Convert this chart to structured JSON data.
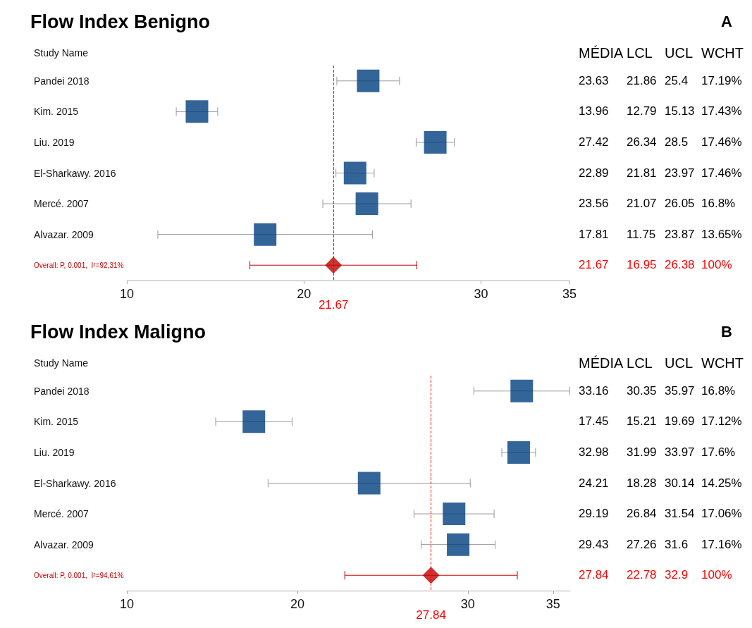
{
  "chart_data": [
    {
      "type": "scatter",
      "orientation": "horizontal",
      "title": "Flow Index Benigno",
      "ylabel": "Study Name",
      "categories": [
        "Pandei 2018",
        "Kim. 2015",
        "Liu. 2019",
        "El-Sharkawy. 2016",
        "Mercé. 2007",
        "Alvazar. 2009",
        "Overall: P, 0.001,  I²=92,31%"
      ],
      "series": [
        {
          "marker": "square",
          "color": "#003f7f",
          "values": [
            23.63,
            13.96,
            27.42,
            22.89,
            23.56,
            17.81,
            null
          ],
          "errors": [
            [
              21.86,
              25.4
            ],
            [
              12.79,
              15.13
            ],
            [
              26.34,
              28.5
            ],
            [
              21.81,
              23.97
            ],
            [
              21.07,
              26.05
            ],
            [
              11.75,
              23.87
            ],
            null
          ]
        },
        {
          "marker": "diamond",
          "color": "#c00000",
          "values": [
            null,
            null,
            null,
            null,
            null,
            null,
            21.67
          ],
          "errors": [
            null,
            null,
            null,
            null,
            null,
            null,
            [
              16.95,
              26.38
            ]
          ]
        }
      ],
      "xlim": [
        10,
        35
      ],
      "xticks": [
        10,
        20,
        30,
        35
      ],
      "ref_lines": [
        {
          "axis": "x",
          "value": 21.67,
          "label": "21.67",
          "color": "#ff0000",
          "line_style": "dashed"
        }
      ]
    },
    {
      "type": "other",
      "annotations": [
        "A"
      ],
      "categories": [
        "MÉDIA",
        "LCL",
        "UCL",
        "WCHT"
      ],
      "cell_labels": [
        [
          "23.63",
          "21.86",
          "25.4",
          "17.19%"
        ],
        [
          "13.96",
          "12.79",
          "15.13",
          "17.43%"
        ],
        [
          "27.42",
          "26.34",
          "28.5",
          "17.46%"
        ],
        [
          "22.89",
          "21.81",
          "23.97",
          "17.46%"
        ],
        [
          "23.56",
          "21.07",
          "26.05",
          "16.8%"
        ],
        [
          "17.81",
          "11.75",
          "23.87",
          "13.65%"
        ],
        [
          "21.67",
          "16.95",
          "26.38",
          "100%"
        ]
      ],
      "colors": [
        "#000000",
        "#000000",
        "#000000",
        "#000000",
        "#000000",
        "#000000",
        "#ff0000"
      ]
    },
    {
      "type": "scatter",
      "orientation": "horizontal",
      "title": "Flow Index Maligno",
      "ylabel": "Study Name",
      "categories": [
        "Pandei 2018",
        "Kim. 2015",
        "Liu. 2019",
        "El-Sharkawy. 2016",
        "Mercé. 2007",
        "Alvazar. 2009",
        "Overall: P, 0.001,  I²=94,61%"
      ],
      "series": [
        {
          "marker": "square",
          "color": "#003f7f",
          "values": [
            33.16,
            17.45,
            32.98,
            24.21,
            29.19,
            29.43,
            null
          ],
          "errors": [
            [
              30.35,
              35.97
            ],
            [
              15.21,
              19.69
            ],
            [
              31.99,
              33.97
            ],
            [
              18.28,
              30.14
            ],
            [
              26.84,
              31.54
            ],
            [
              27.26,
              31.6
            ],
            null
          ]
        },
        {
          "marker": "diamond",
          "color": "#c00000",
          "values": [
            null,
            null,
            null,
            null,
            null,
            null,
            27.84
          ],
          "errors": [
            null,
            null,
            null,
            null,
            null,
            null,
            [
              22.78,
              32.9
            ]
          ]
        }
      ],
      "xlim": [
        10,
        36
      ],
      "xticks": [
        10,
        20,
        30,
        35
      ],
      "ref_lines": [
        {
          "axis": "x",
          "value": 27.84,
          "label": "27.84",
          "color": "#ff0000",
          "line_style": "dashed"
        }
      ]
    },
    {
      "type": "other",
      "annotations": [
        "B"
      ],
      "categories": [
        "MÉDIA",
        "LCL",
        "UCL",
        "WCHT"
      ],
      "cell_labels": [
        [
          "33.16",
          "30.35",
          "35.97",
          "16.8%"
        ],
        [
          "17.45",
          "15.21",
          "19.69",
          "17.12%"
        ],
        [
          "32.98",
          "31.99",
          "33.97",
          "17.6%"
        ],
        [
          "24.21",
          "18.28",
          "30.14",
          "14.25%"
        ],
        [
          "29.19",
          "26.84",
          "31.54",
          "17.06%"
        ],
        [
          "29.43",
          "27.26",
          "31.6",
          "17.16%"
        ],
        [
          "27.84",
          "22.78",
          "32.9",
          "100%"
        ]
      ],
      "colors": [
        "#000000",
        "#000000",
        "#000000",
        "#000000",
        "#000000",
        "#000000",
        "#ff0000"
      ]
    }
  ]
}
